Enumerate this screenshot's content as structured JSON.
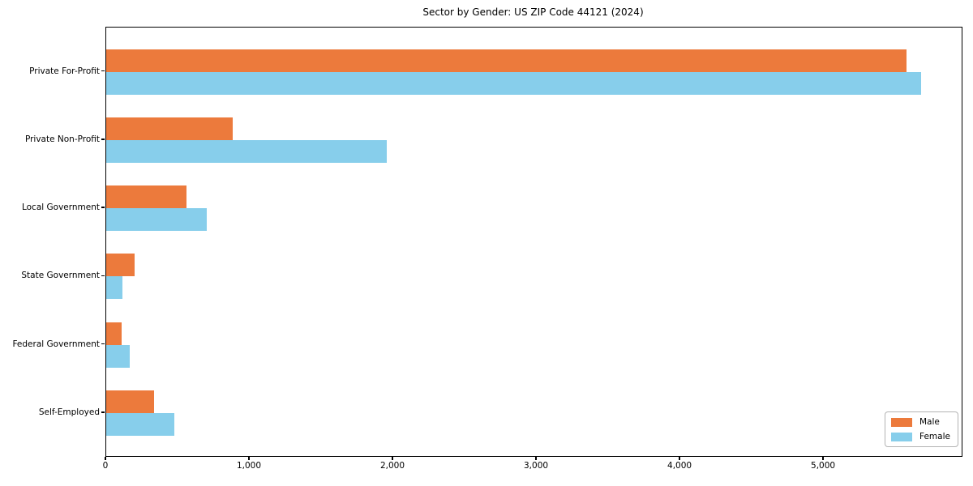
{
  "chart_data": {
    "type": "bar",
    "orientation": "horizontal",
    "title": "Sector by Gender: US ZIP Code 44121 (2024)",
    "xlabel": "",
    "ylabel": "",
    "categories": [
      "Private For-Profit",
      "Private Non-Profit",
      "Local Government",
      "State Government",
      "Federal Government",
      "Self-Employed"
    ],
    "series": [
      {
        "name": "Male",
        "color": "#EC7A3C",
        "values": [
          5575,
          880,
          560,
          195,
          110,
          335
        ]
      },
      {
        "name": "Female",
        "color": "#87CEEB",
        "values": [
          5680,
          1955,
          700,
          115,
          165,
          475
        ]
      }
    ],
    "xlim": [
      0,
      5960
    ],
    "x_ticks": [
      0,
      1000,
      2000,
      3000,
      4000,
      5000
    ],
    "x_tick_labels": [
      "0",
      "1,000",
      "2,000",
      "3,000",
      "4,000",
      "5,000"
    ],
    "grid": false,
    "legend_position": "lower right",
    "legend": {
      "items": [
        {
          "label": "Male",
          "color": "#EC7A3C"
        },
        {
          "label": "Female",
          "color": "#87CEEB"
        }
      ]
    }
  }
}
